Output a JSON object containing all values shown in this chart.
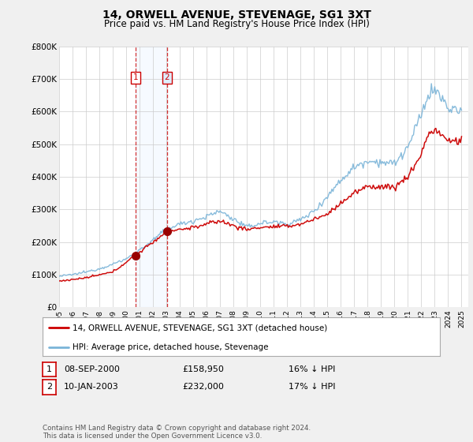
{
  "title": "14, ORWELL AVENUE, STEVENAGE, SG1 3XT",
  "subtitle": "Price paid vs. HM Land Registry's House Price Index (HPI)",
  "legend_entries": [
    "14, ORWELL AVENUE, STEVENAGE, SG1 3XT (detached house)",
    "HPI: Average price, detached house, Stevenage"
  ],
  "table_rows": [
    {
      "num": "1",
      "date": "08-SEP-2000",
      "price": "£158,950",
      "change": "16% ↓ HPI"
    },
    {
      "num": "2",
      "date": "10-JAN-2003",
      "price": "£232,000",
      "change": "17% ↓ HPI"
    }
  ],
  "footer": "Contains HM Land Registry data © Crown copyright and database right 2024.\nThis data is licensed under the Open Government Licence v3.0.",
  "sale1_date_num": 2000.69,
  "sale1_price": 158950,
  "sale2_date_num": 2003.03,
  "sale2_price": 232000,
  "sale1_label": "1",
  "sale2_label": "2",
  "hpi_color": "#7ab4d8",
  "price_color": "#cc0000",
  "sale_marker_color": "#990000",
  "highlight_color": "#ddeeff",
  "ylim": [
    0,
    800000
  ],
  "xlim_start": 1995.0,
  "xlim_end": 2025.5,
  "yticks": [
    0,
    100000,
    200000,
    300000,
    400000,
    500000,
    600000,
    700000,
    800000
  ],
  "ytick_labels": [
    "£0",
    "£100K",
    "£200K",
    "£300K",
    "£400K",
    "£500K",
    "£600K",
    "£700K",
    "£800K"
  ],
  "xticks": [
    1995,
    1996,
    1997,
    1998,
    1999,
    2000,
    2001,
    2002,
    2003,
    2004,
    2005,
    2006,
    2007,
    2008,
    2009,
    2010,
    2011,
    2012,
    2013,
    2014,
    2015,
    2016,
    2017,
    2018,
    2019,
    2020,
    2021,
    2022,
    2023,
    2024,
    2025
  ],
  "background_color": "#f0f0f0",
  "plot_bg_color": "#ffffff",
  "grid_color": "#cccccc",
  "hpi_anchors_x": [
    1995.0,
    1996.0,
    1997.0,
    1998.0,
    1999.0,
    2000.0,
    2001.0,
    2002.0,
    2003.0,
    2004.0,
    2005.0,
    2006.0,
    2007.0,
    2008.0,
    2009.0,
    2010.0,
    2011.0,
    2012.0,
    2013.0,
    2014.0,
    2015.0,
    2016.0,
    2017.0,
    2018.0,
    2019.0,
    2020.0,
    2021.0,
    2022.0,
    2022.5,
    2023.0,
    2024.0,
    2025.0
  ],
  "hpi_anchors_y": [
    95000,
    100000,
    108000,
    118000,
    132000,
    148000,
    175000,
    205000,
    240000,
    255000,
    265000,
    278000,
    295000,
    270000,
    245000,
    258000,
    262000,
    255000,
    268000,
    295000,
    340000,
    390000,
    430000,
    450000,
    445000,
    440000,
    490000,
    590000,
    650000,
    670000,
    610000,
    600000
  ],
  "price_anchors_x": [
    1995.0,
    1997.0,
    1999.0,
    2000.69,
    2003.03,
    2005.0,
    2007.0,
    2008.0,
    2009.0,
    2010.0,
    2012.0,
    2013.0,
    2015.0,
    2016.0,
    2017.0,
    2018.0,
    2019.0,
    2020.0,
    2021.0,
    2022.0,
    2022.5,
    2023.0,
    2024.0,
    2025.0
  ],
  "price_anchors_y": [
    80000,
    90000,
    108000,
    158950,
    232000,
    245000,
    265000,
    250000,
    238000,
    245000,
    248000,
    255000,
    285000,
    320000,
    350000,
    370000,
    370000,
    368000,
    400000,
    470000,
    530000,
    545000,
    510000,
    510000
  ]
}
